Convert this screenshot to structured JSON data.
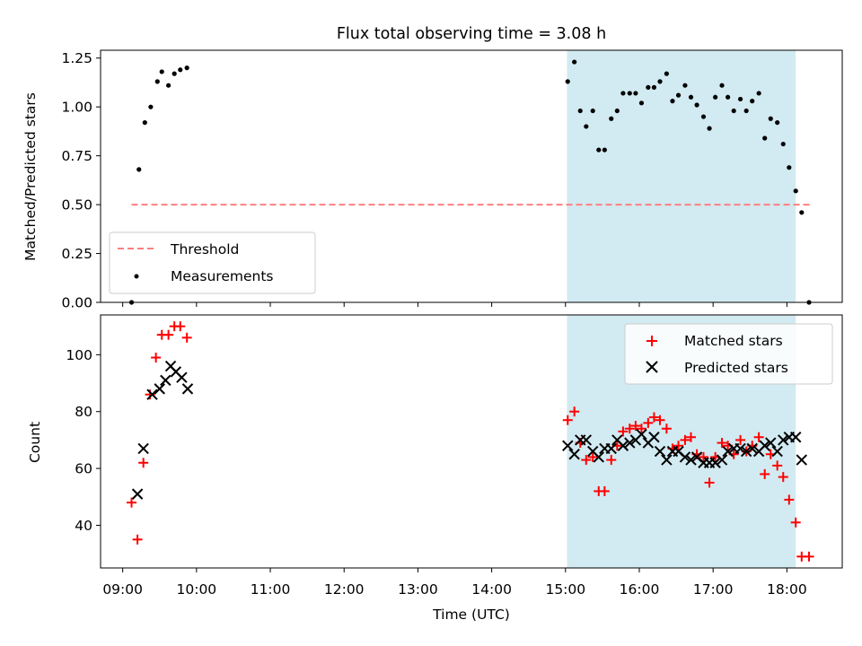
{
  "chart_data": [
    {
      "type": "scatter",
      "title": "Flux total observing time = 3.08 h",
      "xlabel": "",
      "ylabel": "Matched/Predicted stars",
      "xlim": [
        8.7,
        18.75
      ],
      "ylim": [
        0,
        1.29
      ],
      "yticks": [
        0.0,
        0.25,
        0.5,
        0.75,
        1.0,
        1.25
      ],
      "ytick_labels": [
        "0.00",
        "0.25",
        "0.50",
        "0.75",
        "1.00",
        "1.25"
      ],
      "shaded_region": {
        "x_start": 15.02,
        "x_end": 18.12,
        "color": "#add8e6"
      },
      "threshold": {
        "label": "Threshold",
        "value": 0.5,
        "x_start": 9.12,
        "x_end": 18.32,
        "color": "#ff7f7f"
      },
      "legend": {
        "position": "lower-left",
        "entries": [
          "Threshold",
          "Measurements"
        ]
      },
      "series": [
        {
          "name": "Measurements",
          "color": "#000000",
          "points": [
            [
              9.12,
              0.0
            ],
            [
              9.22,
              0.68
            ],
            [
              9.3,
              0.92
            ],
            [
              9.38,
              1.0
            ],
            [
              9.47,
              1.13
            ],
            [
              9.53,
              1.18
            ],
            [
              9.62,
              1.11
            ],
            [
              9.7,
              1.17
            ],
            [
              9.78,
              1.19
            ],
            [
              9.87,
              1.2
            ],
            [
              15.03,
              1.13
            ],
            [
              15.12,
              1.23
            ],
            [
              15.2,
              0.98
            ],
            [
              15.28,
              0.9
            ],
            [
              15.37,
              0.98
            ],
            [
              15.45,
              0.78
            ],
            [
              15.53,
              0.78
            ],
            [
              15.62,
              0.94
            ],
            [
              15.7,
              0.98
            ],
            [
              15.78,
              1.07
            ],
            [
              15.87,
              1.07
            ],
            [
              15.95,
              1.07
            ],
            [
              16.03,
              1.02
            ],
            [
              16.12,
              1.1
            ],
            [
              16.2,
              1.1
            ],
            [
              16.28,
              1.13
            ],
            [
              16.37,
              1.17
            ],
            [
              16.45,
              1.03
            ],
            [
              16.53,
              1.06
            ],
            [
              16.62,
              1.11
            ],
            [
              16.7,
              1.05
            ],
            [
              16.78,
              1.01
            ],
            [
              16.87,
              0.95
            ],
            [
              16.95,
              0.89
            ],
            [
              17.03,
              1.05
            ],
            [
              17.12,
              1.11
            ],
            [
              17.2,
              1.05
            ],
            [
              17.28,
              0.98
            ],
            [
              17.37,
              1.04
            ],
            [
              17.45,
              0.98
            ],
            [
              17.53,
              1.03
            ],
            [
              17.62,
              1.07
            ],
            [
              17.7,
              0.84
            ],
            [
              17.78,
              0.94
            ],
            [
              17.87,
              0.92
            ],
            [
              17.95,
              0.81
            ],
            [
              18.03,
              0.69
            ],
            [
              18.12,
              0.57
            ],
            [
              18.2,
              0.46
            ],
            [
              18.3,
              0.0
            ]
          ]
        }
      ]
    },
    {
      "type": "scatter",
      "title": "",
      "xlabel": "Time (UTC)",
      "ylabel": "Count",
      "xlim": [
        8.7,
        18.75
      ],
      "ylim": [
        25,
        114
      ],
      "xticks": [
        9,
        10,
        11,
        12,
        13,
        14,
        15,
        16,
        17,
        18
      ],
      "xtick_labels": [
        "09:00",
        "10:00",
        "11:00",
        "12:00",
        "13:00",
        "14:00",
        "15:00",
        "16:00",
        "17:00",
        "18:00"
      ],
      "yticks": [
        40,
        60,
        80,
        100
      ],
      "ytick_labels": [
        "40",
        "60",
        "80",
        "100"
      ],
      "shaded_region": {
        "x_start": 15.02,
        "x_end": 18.12,
        "color": "#add8e6"
      },
      "legend": {
        "position": "top-right",
        "entries": [
          "Matched stars",
          "Predicted stars"
        ]
      },
      "series": [
        {
          "name": "Matched stars",
          "color": "#ff0000",
          "marker": "plus",
          "points": [
            [
              9.12,
              48
            ],
            [
              9.2,
              35
            ],
            [
              9.28,
              62
            ],
            [
              9.37,
              86
            ],
            [
              9.45,
              99
            ],
            [
              9.53,
              107
            ],
            [
              9.62,
              107
            ],
            [
              9.7,
              110
            ],
            [
              9.78,
              110
            ],
            [
              9.87,
              106
            ],
            [
              15.03,
              77
            ],
            [
              15.12,
              80
            ],
            [
              15.2,
              69
            ],
            [
              15.28,
              63
            ],
            [
              15.37,
              64
            ],
            [
              15.45,
              52
            ],
            [
              15.53,
              52
            ],
            [
              15.62,
              63
            ],
            [
              15.7,
              68
            ],
            [
              15.78,
              73
            ],
            [
              15.87,
              74
            ],
            [
              15.95,
              75
            ],
            [
              16.03,
              74
            ],
            [
              16.12,
              76
            ],
            [
              16.2,
              78
            ],
            [
              16.28,
              77
            ],
            [
              16.37,
              74
            ],
            [
              16.45,
              67
            ],
            [
              16.53,
              68
            ],
            [
              16.62,
              70
            ],
            [
              16.7,
              71
            ],
            [
              16.78,
              65
            ],
            [
              16.87,
              64
            ],
            [
              16.95,
              55
            ],
            [
              17.03,
              64
            ],
            [
              17.12,
              69
            ],
            [
              17.2,
              68
            ],
            [
              17.28,
              65
            ],
            [
              17.37,
              70
            ],
            [
              17.45,
              66
            ],
            [
              17.53,
              68
            ],
            [
              17.62,
              71
            ],
            [
              17.7,
              58
            ],
            [
              17.78,
              65
            ],
            [
              17.87,
              61
            ],
            [
              17.95,
              57
            ],
            [
              18.03,
              49
            ],
            [
              18.12,
              41
            ],
            [
              18.2,
              29
            ],
            [
              18.3,
              29
            ]
          ]
        },
        {
          "name": "Predicted stars",
          "color": "#000000",
          "marker": "x",
          "points": [
            [
              9.2,
              51
            ],
            [
              9.28,
              67
            ],
            [
              9.4,
              86
            ],
            [
              9.5,
              88
            ],
            [
              9.58,
              91
            ],
            [
              9.65,
              96
            ],
            [
              9.72,
              94
            ],
            [
              9.8,
              92
            ],
            [
              9.88,
              88
            ],
            [
              15.03,
              68
            ],
            [
              15.12,
              65
            ],
            [
              15.2,
              70
            ],
            [
              15.28,
              70
            ],
            [
              15.37,
              66
            ],
            [
              15.45,
              64
            ],
            [
              15.53,
              67
            ],
            [
              15.62,
              67
            ],
            [
              15.7,
              70
            ],
            [
              15.78,
              68
            ],
            [
              15.87,
              69
            ],
            [
              15.95,
              70
            ],
            [
              16.03,
              72
            ],
            [
              16.12,
              69
            ],
            [
              16.2,
              71
            ],
            [
              16.28,
              66
            ],
            [
              16.37,
              63
            ],
            [
              16.45,
              66
            ],
            [
              16.53,
              66
            ],
            [
              16.62,
              64
            ],
            [
              16.7,
              63
            ],
            [
              16.78,
              64
            ],
            [
              16.87,
              62
            ],
            [
              16.95,
              62
            ],
            [
              17.03,
              62
            ],
            [
              17.12,
              63
            ],
            [
              17.2,
              66
            ],
            [
              17.28,
              67
            ],
            [
              17.37,
              67
            ],
            [
              17.45,
              66
            ],
            [
              17.53,
              67
            ],
            [
              17.62,
              66
            ],
            [
              17.7,
              68
            ],
            [
              17.78,
              69
            ],
            [
              17.87,
              66
            ],
            [
              17.95,
              70
            ],
            [
              18.03,
              71
            ],
            [
              18.12,
              71
            ],
            [
              18.2,
              63
            ]
          ]
        }
      ]
    }
  ]
}
